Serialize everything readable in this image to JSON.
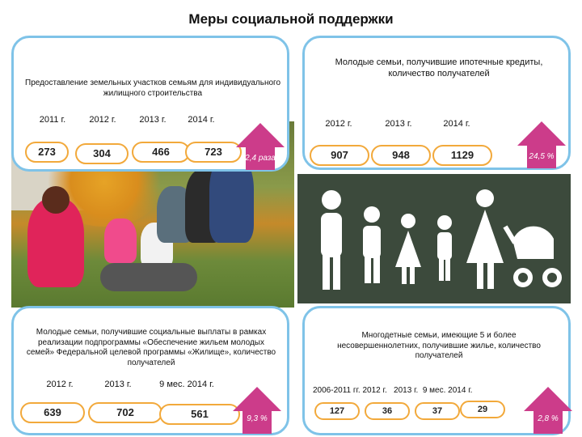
{
  "title": "Меры социальной поддержки",
  "card1": {
    "label": "Предоставление земельных участков семьям для индивидуального жилищного строительства",
    "years": [
      "2011 г.",
      "2012 г.",
      "2013 г.",
      "2014 г."
    ],
    "values": [
      "273",
      "304",
      "466",
      "723"
    ],
    "growth": "2,4 раза"
  },
  "card2": {
    "label": "Молодые семьи, получившие ипотечные кредиты, количество получателей",
    "years": [
      "2012 г.",
      "2013 г.",
      "2014 г."
    ],
    "values": [
      "907",
      "948",
      "1129"
    ],
    "growth": "24,5 %"
  },
  "card3": {
    "label": "Молодые семьи, получившие социальные выплаты в рамках реализации подпрограммы «Обеспечение жильем молодых семей» Федеральной целевой программы «Жилище», количество получателей",
    "years": [
      "2012 г.",
      "2013 г.",
      "9 мес. 2014 г."
    ],
    "values": [
      "639",
      "702",
      "561"
    ],
    "growth": "9,3 %"
  },
  "card4": {
    "label": "Многодетные семьи, имеющие 5 и более несовершеннолетних, получившие жилье, количество получателей",
    "years_text": "2006-2011 гг. 2012 г.   2013 г.  9 мес. 2014 г.",
    "values": [
      "127",
      "36",
      "37",
      "29"
    ],
    "growth": "2,8 %"
  },
  "colors": {
    "accent_border": "#7fc3e8",
    "pill_border": "#f2a93b",
    "arrow": "#cc3c8a",
    "dark_panel": "#3c4a3c"
  },
  "icons": [
    "family-silhouette-icon",
    "stroller-icon",
    "up-arrow-icon",
    "family-photo"
  ]
}
